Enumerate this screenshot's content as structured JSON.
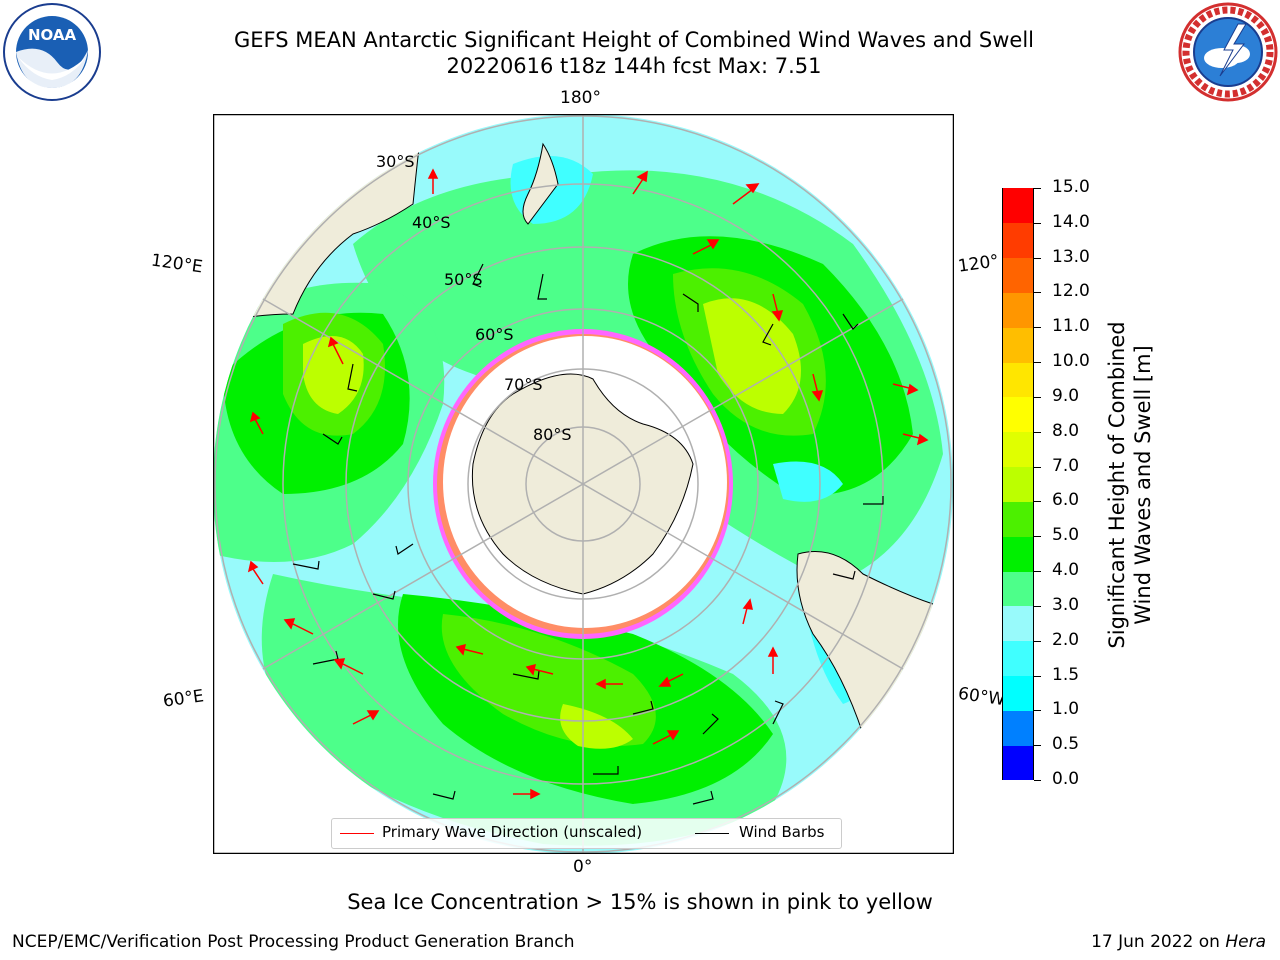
{
  "title": {
    "line1": "GEFS MEAN Antarctic Significant Height of Combined Wind Waves and Swell",
    "line2": "20220616 t18z 144h fcst   Max: 7.51"
  },
  "logos": {
    "left": {
      "icon": "noaa-logo-icon",
      "text": "NOAA"
    },
    "right": {
      "icon": "nws-logo-icon"
    }
  },
  "map": {
    "projection": "south-polar-stereographic",
    "longitude_labels": {
      "top": "180°",
      "left_upper": "120°E",
      "right_upper": "120°",
      "left_lower": "60°E",
      "right_lower": "60°W",
      "bottom": "0°"
    },
    "latitude_labels": [
      "30°S",
      "40°S",
      "50°S",
      "60°S",
      "70°S",
      "80°S"
    ],
    "land_color": "#efecda",
    "ocean_base_color": "#98fafb"
  },
  "colorbar": {
    "label_line1": "Significant Height of Combined",
    "label_line2": "Wind Waves and Swell [m]",
    "ticks": [
      "0.0",
      "0.5",
      "1.0",
      "1.5",
      "2.0",
      "3.0",
      "4.0",
      "5.0",
      "6.0",
      "7.0",
      "8.0",
      "9.0",
      "10.0",
      "11.0",
      "12.0",
      "13.0",
      "14.0",
      "15.0"
    ],
    "colors": [
      "#0000ff",
      "#0080ff",
      "#00ffff",
      "#40ffff",
      "#98fafb",
      "#4dff8a",
      "#00f000",
      "#4cf000",
      "#bcff00",
      "#e0ff00",
      "#ffff00",
      "#ffe600",
      "#ffbe00",
      "#ff9600",
      "#ff6400",
      "#ff3c00",
      "#ff0000"
    ]
  },
  "legend": {
    "wave_label": "Primary Wave Direction (unscaled)",
    "wave_color": "#ff0000",
    "barb_label": "Wind Barbs",
    "barb_color": "#000000"
  },
  "note": "Sea Ice Concentration > 15% is shown in pink to yellow",
  "footer": {
    "left": "NCEP/EMC/Verification Post Processing Product Generation Branch",
    "right_date": "17 Jun 2022 on ",
    "right_host": "Hera"
  }
}
